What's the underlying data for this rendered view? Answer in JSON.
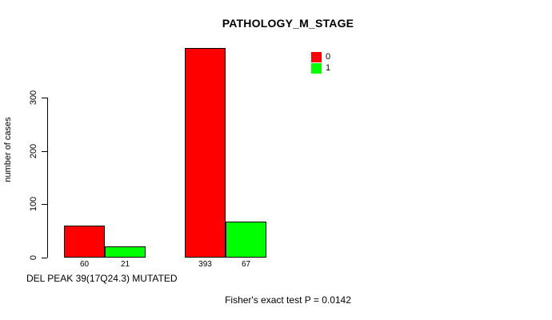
{
  "chart_data": {
    "type": "bar",
    "title": "PATHOLOGY_M_STAGE",
    "ylabel": "number of cases",
    "xlabel": "DEL PEAK 39(17Q24.3) MUTATED",
    "note": "Fisher's exact test P = 0.0142",
    "categories": [
      "",
      ""
    ],
    "series": [
      {
        "name": "0",
        "color": "#ff0000",
        "values": [
          60,
          393
        ]
      },
      {
        "name": "1",
        "color": "#00ff00",
        "values": [
          21,
          67
        ]
      }
    ],
    "bar_value_labels": [
      [
        60,
        21
      ],
      [
        393,
        67
      ]
    ],
    "ylim": [
      0,
      300
    ],
    "yticks": [
      0,
      100,
      200,
      300
    ],
    "grid": false,
    "bar_border_color": "#000000",
    "background": "#ffffff",
    "legend": {
      "position": "top-right",
      "entries": [
        {
          "label": "0",
          "color": "#ff0000"
        },
        {
          "label": "1",
          "color": "#00ff00"
        }
      ]
    }
  }
}
